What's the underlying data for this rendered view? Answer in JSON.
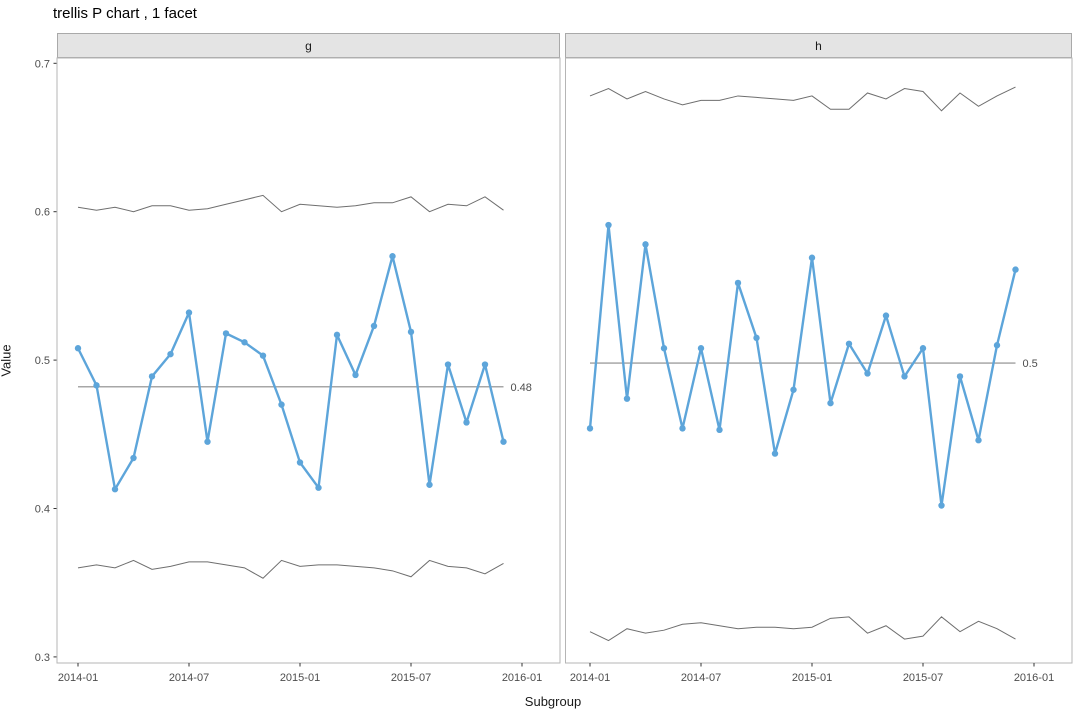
{
  "page": {
    "title": "trellis P chart , 1 facet",
    "x_axis_label": "Subgroup",
    "y_axis_label": "Value"
  },
  "chart_data": {
    "type": "line",
    "title": "trellis P chart , 1 facet",
    "xlabel": "Subgroup",
    "ylabel": "Value",
    "grid": false,
    "legend": false,
    "ylim": [
      0.296,
      0.704
    ],
    "y_ticks": [
      0.3,
      0.4,
      0.5,
      0.6,
      0.7
    ],
    "x_tick_labels": [
      "2014-01",
      "2014-07",
      "2015-01",
      "2015-07",
      "2016-01"
    ],
    "x_tick_month_offsets": [
      0,
      6,
      12,
      18,
      24
    ],
    "x": [
      "2014-01",
      "2014-02",
      "2014-03",
      "2014-04",
      "2014-05",
      "2014-06",
      "2014-07",
      "2014-08",
      "2014-09",
      "2014-10",
      "2014-11",
      "2014-12",
      "2015-01",
      "2015-02",
      "2015-03",
      "2015-04",
      "2015-05",
      "2015-06",
      "2015-07",
      "2015-08",
      "2015-09",
      "2015-10",
      "2015-11",
      "2015-12"
    ],
    "facets": [
      {
        "label": "g",
        "center": 0.482,
        "center_label": "0.48",
        "values": [
          0.508,
          0.483,
          0.413,
          0.434,
          0.489,
          0.504,
          0.532,
          0.445,
          0.518,
          0.512,
          0.503,
          0.47,
          0.431,
          0.414,
          0.517,
          0.49,
          0.523,
          0.57,
          0.519,
          0.416,
          0.497,
          0.458,
          0.497,
          0.445
        ],
        "ucl": [
          0.603,
          0.601,
          0.603,
          0.6,
          0.604,
          0.604,
          0.601,
          0.602,
          0.605,
          0.608,
          0.611,
          0.6,
          0.605,
          0.604,
          0.603,
          0.604,
          0.606,
          0.606,
          0.61,
          0.6,
          0.605,
          0.604,
          0.61,
          0.601
        ],
        "lcl": [
          0.36,
          0.362,
          0.36,
          0.365,
          0.359,
          0.361,
          0.364,
          0.364,
          0.362,
          0.36,
          0.353,
          0.365,
          0.361,
          0.362,
          0.362,
          0.361,
          0.36,
          0.358,
          0.354,
          0.365,
          0.361,
          0.36,
          0.356,
          0.363
        ]
      },
      {
        "label": "h",
        "center": 0.498,
        "center_label": "0.5",
        "values": [
          0.454,
          0.591,
          0.474,
          0.578,
          0.508,
          0.454,
          0.508,
          0.453,
          0.552,
          0.515,
          0.437,
          0.48,
          0.569,
          0.471,
          0.511,
          0.491,
          0.53,
          0.489,
          0.508,
          0.402,
          0.489,
          0.446,
          0.51,
          0.561
        ],
        "ucl": [
          0.678,
          0.683,
          0.676,
          0.681,
          0.676,
          0.672,
          0.675,
          0.675,
          0.678,
          0.677,
          0.676,
          0.675,
          0.678,
          0.669,
          0.669,
          0.68,
          0.676,
          0.683,
          0.681,
          0.668,
          0.68,
          0.671,
          0.678,
          0.684
        ],
        "lcl": [
          0.317,
          0.311,
          0.319,
          0.316,
          0.318,
          0.322,
          0.323,
          0.321,
          0.319,
          0.32,
          0.32,
          0.319,
          0.32,
          0.326,
          0.327,
          0.316,
          0.321,
          0.312,
          0.314,
          0.327,
          0.317,
          0.324,
          0.319,
          0.312
        ]
      }
    ],
    "colors": {
      "series": "#5DA5DA",
      "center_line": "#8A8A8A",
      "limit_line": "#6E6E6E",
      "strip_fill": "#E4E4E4",
      "strip_border": "#A9A9A9",
      "panel_border": "#B5B5B5",
      "axis_text": "#4D4D4D",
      "title_text": "#000000"
    }
  }
}
